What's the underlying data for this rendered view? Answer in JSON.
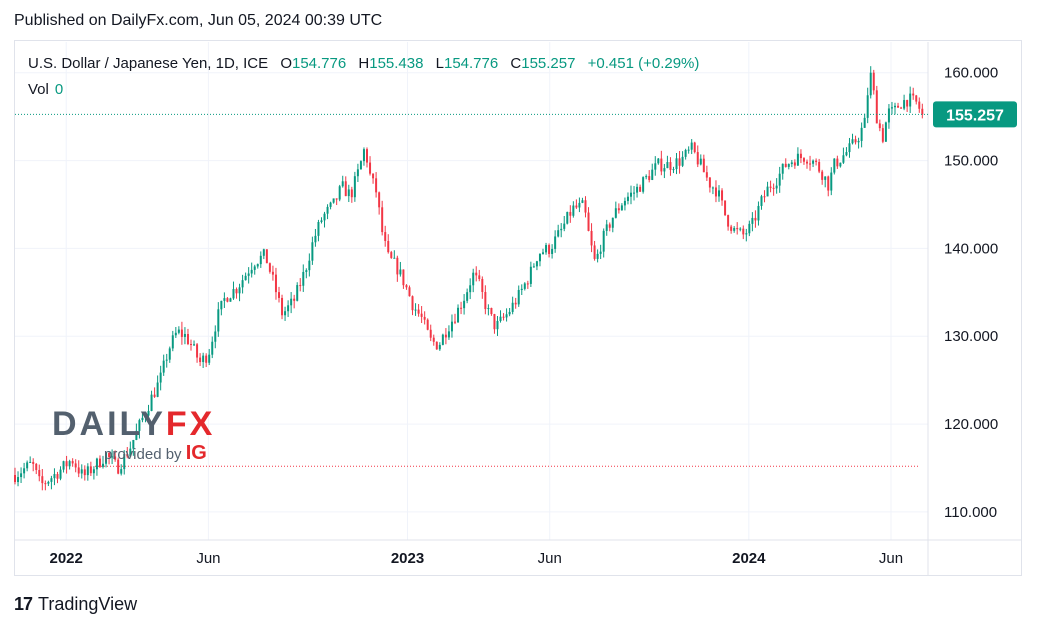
{
  "published": "Published on DailyFx.com, Jun 05, 2024 00:39 UTC",
  "legend": {
    "symbol": "U.S. Dollar / Japanese Yen, 1D, ICE",
    "o_label": "O",
    "o_value": "154.776",
    "h_label": "H",
    "h_value": "155.438",
    "l_label": "L",
    "l_value": "154.776",
    "c_label": "C",
    "c_value": "155.257",
    "change": "+0.451 (+0.29%)",
    "vol_label": "Vol",
    "vol_value": "0"
  },
  "watermark": {
    "daily": "DAILY",
    "fx": "FX",
    "provided_by": "provided by",
    "ig": "IG"
  },
  "footer": {
    "brand": "TradingView",
    "mark": "17"
  },
  "colors": {
    "up": "#089981",
    "down": "#f23645",
    "price_tag": "#089981",
    "grid": "#f0f3fa"
  },
  "chart_data": {
    "type": "candlestick",
    "title": "U.S. Dollar / Japanese Yen, 1D, ICE",
    "y_ticks": [
      110,
      120,
      130,
      140,
      150,
      160
    ],
    "y_tick_labels": [
      "110.000",
      "120.000",
      "130.000",
      "140.000",
      "150.000",
      "160.000"
    ],
    "ylim": [
      106.8,
      163.5
    ],
    "x_ticks": [
      {
        "label": "2022",
        "t": 0.0,
        "bold": true
      },
      {
        "label": "Jun",
        "t": 5.0,
        "bold": false
      },
      {
        "label": "2023",
        "t": 12.0,
        "bold": true
      },
      {
        "label": "Jun",
        "t": 17.0,
        "bold": false
      },
      {
        "label": "2024",
        "t": 24.0,
        "bold": true
      },
      {
        "label": "Jun",
        "t": 29.0,
        "bold": false
      }
    ],
    "xlim": [
      -1.8,
      30.3
    ],
    "last_price": 155.257,
    "last_price_label": "155.257",
    "reference_level": 115.2,
    "path": [
      [
        -1.8,
        114.2
      ],
      [
        -1.2,
        115.5
      ],
      [
        -0.9,
        113.0
      ],
      [
        -0.3,
        114.5
      ],
      [
        0.2,
        116.0
      ],
      [
        0.6,
        114.0
      ],
      [
        1.0,
        115.2
      ],
      [
        1.4,
        116.5
      ],
      [
        1.8,
        115.0
      ],
      [
        2.2,
        117.0
      ],
      [
        2.4,
        118.5
      ],
      [
        2.8,
        121.5
      ],
      [
        3.0,
        123.0
      ],
      [
        3.3,
        125.0
      ],
      [
        3.6,
        128.5
      ],
      [
        3.9,
        130.5
      ],
      [
        4.2,
        130.0
      ],
      [
        4.4,
        129.0
      ],
      [
        4.7,
        127.0
      ],
      [
        5.0,
        128.0
      ],
      [
        5.3,
        132.0
      ],
      [
        5.6,
        134.5
      ],
      [
        6.0,
        135.5
      ],
      [
        6.3,
        137.0
      ],
      [
        6.6,
        138.5
      ],
      [
        7.0,
        139.2
      ],
      [
        7.3,
        136.0
      ],
      [
        7.6,
        132.5
      ],
      [
        8.0,
        134.0
      ],
      [
        8.4,
        137.5
      ],
      [
        8.7,
        141.0
      ],
      [
        9.0,
        143.5
      ],
      [
        9.4,
        145.0
      ],
      [
        9.7,
        147.0
      ],
      [
        10.0,
        146.0
      ],
      [
        10.3,
        149.0
      ],
      [
        10.5,
        151.5
      ],
      [
        10.7,
        148.0
      ],
      [
        10.9,
        146.5
      ],
      [
        11.1,
        142.0
      ],
      [
        11.3,
        139.0
      ],
      [
        11.6,
        138.0
      ],
      [
        11.9,
        136.0
      ],
      [
        12.2,
        133.5
      ],
      [
        12.5,
        132.0
      ],
      [
        12.8,
        129.5
      ],
      [
        13.1,
        129.0
      ],
      [
        13.4,
        131.0
      ],
      [
        13.7,
        132.5
      ],
      [
        14.0,
        134.5
      ],
      [
        14.3,
        137.0
      ],
      [
        14.5,
        136.0
      ],
      [
        14.8,
        133.0
      ],
      [
        15.1,
        131.0
      ],
      [
        15.5,
        132.5
      ],
      [
        15.9,
        134.5
      ],
      [
        16.3,
        137.0
      ],
      [
        16.6,
        139.5
      ],
      [
        17.0,
        140.0
      ],
      [
        17.4,
        142.0
      ],
      [
        17.8,
        144.5
      ],
      [
        18.2,
        144.8
      ],
      [
        18.4,
        141.0
      ],
      [
        18.6,
        138.2
      ],
      [
        18.8,
        140.5
      ],
      [
        19.2,
        143.5
      ],
      [
        19.6,
        145.5
      ],
      [
        20.0,
        146.5
      ],
      [
        20.4,
        148.0
      ],
      [
        20.8,
        149.5
      ],
      [
        21.2,
        149.5
      ],
      [
        21.6,
        150.0
      ],
      [
        22.0,
        151.3
      ],
      [
        22.3,
        149.5
      ],
      [
        22.6,
        147.5
      ],
      [
        22.9,
        146.5
      ],
      [
        23.2,
        143.5
      ],
      [
        23.5,
        142.0
      ],
      [
        23.8,
        141.5
      ],
      [
        24.1,
        142.5
      ],
      [
        24.4,
        145.0
      ],
      [
        24.7,
        147.0
      ],
      [
        25.0,
        148.0
      ],
      [
        25.3,
        149.5
      ],
      [
        25.6,
        150.2
      ],
      [
        26.0,
        150.5
      ],
      [
        26.3,
        149.8
      ],
      [
        26.6,
        148.5
      ],
      [
        26.8,
        147.2
      ],
      [
        27.0,
        149.5
      ],
      [
        27.3,
        150.5
      ],
      [
        27.6,
        151.5
      ],
      [
        27.9,
        153.0
      ],
      [
        28.1,
        154.5
      ],
      [
        28.2,
        158.5
      ],
      [
        28.3,
        159.8
      ],
      [
        28.5,
        155.0
      ],
      [
        28.7,
        152.5
      ],
      [
        28.9,
        155.5
      ],
      [
        29.1,
        155.5
      ],
      [
        29.3,
        156.5
      ],
      [
        29.6,
        157.0
      ],
      [
        29.9,
        156.5
      ],
      [
        30.1,
        155.3
      ]
    ]
  }
}
